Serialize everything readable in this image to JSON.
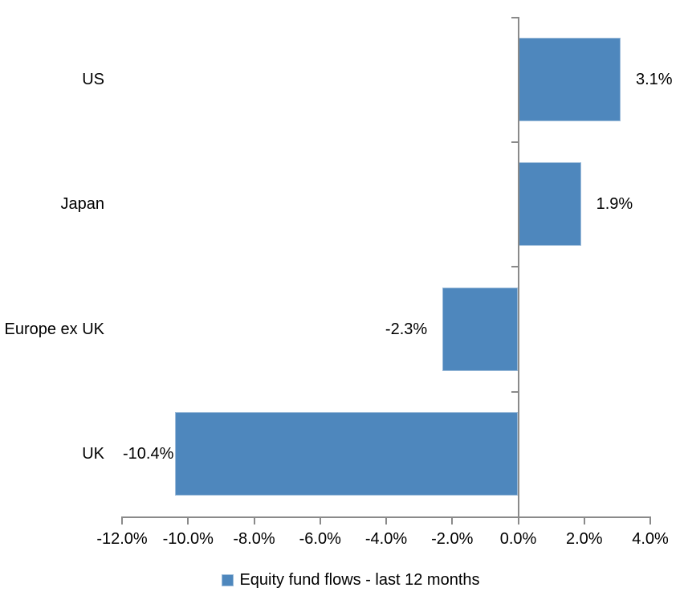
{
  "chart_data": {
    "type": "bar",
    "orientation": "horizontal",
    "categories": [
      "US",
      "Japan",
      "Europe ex UK",
      "UK"
    ],
    "values": [
      3.1,
      1.9,
      -2.3,
      -10.4
    ],
    "data_labels": [
      "3.1%",
      "1.9%",
      "-2.3%",
      "-10.4%"
    ],
    "x_tick_labels": [
      "-12.0%",
      "-10.0%",
      "-8.0%",
      "-6.0%",
      "-4.0%",
      "-2.0%",
      "0.0%",
      "2.0%",
      "4.0%"
    ],
    "xlim": [
      -12,
      4
    ],
    "x_tick_step": 2,
    "grid": false,
    "legend_position": "bottom",
    "legend": [
      {
        "label": "Equity fund flows - last 12 months",
        "color": "#4e87bd"
      }
    ],
    "colors": {
      "bar_fill": "#4e87bd",
      "bar_border": "#9dbcda",
      "axis": "#8a8a8a",
      "text": "#000000",
      "background": "#ffffff"
    }
  }
}
